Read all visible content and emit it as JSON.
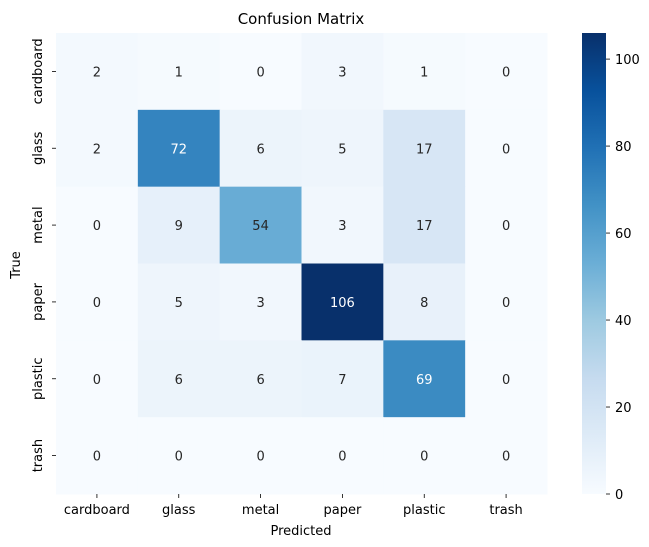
{
  "chart_data": {
    "type": "heatmap",
    "title": "Confusion Matrix",
    "xlabel": "Predicted",
    "ylabel": "True",
    "x_categories": [
      "cardboard",
      "glass",
      "metal",
      "paper",
      "plastic",
      "trash"
    ],
    "y_categories": [
      "cardboard",
      "glass",
      "metal",
      "paper",
      "plastic",
      "trash"
    ],
    "values": [
      [
        2,
        1,
        0,
        3,
        1,
        0
      ],
      [
        2,
        72,
        6,
        5,
        17,
        0
      ],
      [
        0,
        9,
        54,
        3,
        17,
        0
      ],
      [
        0,
        5,
        3,
        106,
        8,
        0
      ],
      [
        0,
        6,
        6,
        7,
        69,
        0
      ],
      [
        0,
        0,
        0,
        0,
        0,
        0
      ]
    ],
    "colorbar": {
      "colormap": "Blues",
      "range": [
        0,
        106
      ],
      "ticks": [
        0,
        20,
        40,
        60,
        80,
        100
      ]
    },
    "annotations": true
  }
}
